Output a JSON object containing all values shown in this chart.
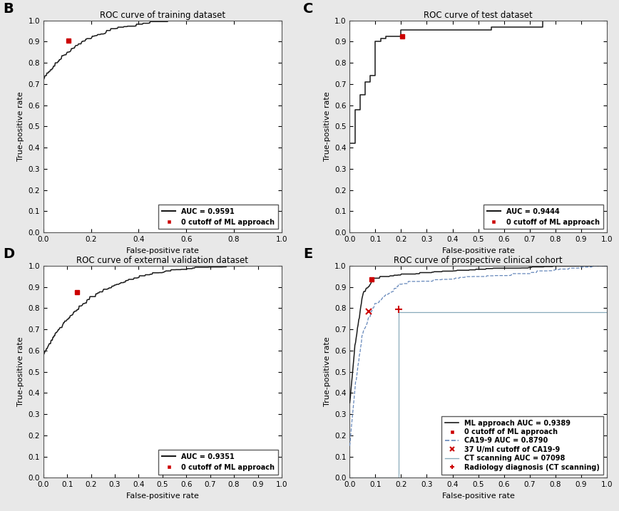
{
  "panel_B": {
    "title": "ROC curve of training dataset",
    "auc": "0.9591",
    "cutoff_point": [
      0.105,
      0.905
    ],
    "xlabel": "False-positive rate",
    "ylabel": "True-positive rate",
    "xticks": [
      0,
      0.2,
      0.4,
      0.6,
      0.8,
      1
    ],
    "yticks": [
      0,
      0.1,
      0.2,
      0.3,
      0.4,
      0.5,
      0.6,
      0.7,
      0.8,
      0.9,
      1
    ]
  },
  "panel_C": {
    "title": "ROC curve of test dataset",
    "auc": "0.9444",
    "cutoff_point": [
      0.205,
      0.925
    ],
    "xlabel": "False-positive rate",
    "ylabel": "True-positive rate",
    "xticks": [
      0,
      0.1,
      0.2,
      0.3,
      0.4,
      0.5,
      0.6,
      0.7,
      0.8,
      0.9,
      1
    ],
    "yticks": [
      0,
      0.1,
      0.2,
      0.3,
      0.4,
      0.5,
      0.6,
      0.7,
      0.8,
      0.9,
      1
    ]
  },
  "panel_D": {
    "title": "ROC curve of external validation dataset",
    "auc": "0.9351",
    "cutoff_point": [
      0.14,
      0.875
    ],
    "xlabel": "False-positive rate",
    "ylabel": "True-positive rate",
    "xticks": [
      0,
      0.1,
      0.2,
      0.3,
      0.4,
      0.5,
      0.6,
      0.7,
      0.8,
      0.9,
      1
    ],
    "yticks": [
      0,
      0.1,
      0.2,
      0.3,
      0.4,
      0.5,
      0.6,
      0.7,
      0.8,
      0.9,
      1
    ]
  },
  "panel_E": {
    "title": "ROC curve of prospective clinical cohort",
    "ml_auc": "0.9389",
    "ml_cutoff": [
      0.085,
      0.935
    ],
    "ca199_auc": "0.8790",
    "ca199_cutoff": [
      0.075,
      0.785
    ],
    "ct_auc": "07098",
    "ct_tpr": 0.78,
    "ct_cutoff": [
      0.19,
      0.795
    ],
    "xlabel": "False-positive rate",
    "ylabel": "True-positive rate",
    "xticks": [
      0,
      0.1,
      0.2,
      0.3,
      0.4,
      0.5,
      0.6,
      0.7,
      0.8,
      0.9,
      1
    ],
    "yticks": [
      0,
      0.1,
      0.2,
      0.3,
      0.4,
      0.5,
      0.6,
      0.7,
      0.8,
      0.9,
      1
    ]
  },
  "bg_color": "#e8e8e8",
  "plot_bg": "#ffffff",
  "line_color": "#1a1a1a",
  "red_color": "#cc0000",
  "ca199_line_color": "#6688bb",
  "ct_line_color": "#88aabb",
  "label_fontsize": 8,
  "title_fontsize": 8.5,
  "tick_fontsize": 7.5,
  "legend_fontsize": 7,
  "panel_label_fontsize": 14
}
